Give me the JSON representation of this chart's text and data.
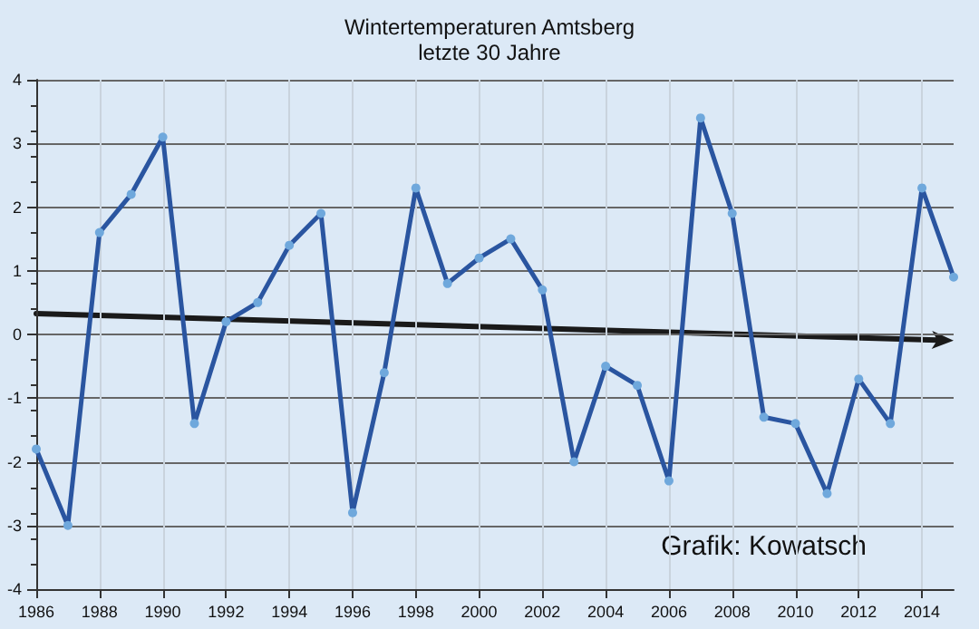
{
  "chart_data": {
    "type": "line",
    "title": "Wintertemperaturen Amtsberg",
    "subtitle": "letzte 30 Jahre",
    "x": [
      1986,
      1987,
      1988,
      1989,
      1990,
      1991,
      1992,
      1993,
      1994,
      1995,
      1996,
      1997,
      1998,
      1999,
      2000,
      2001,
      2002,
      2003,
      2004,
      2005,
      2006,
      2007,
      2008,
      2009,
      2010,
      2011,
      2012,
      2013,
      2014,
      2015
    ],
    "series": [
      {
        "color": "#2a55a0",
        "values": [
          -1.8,
          -3.0,
          1.6,
          2.2,
          3.1,
          -1.4,
          0.2,
          0.5,
          1.4,
          1.9,
          -2.8,
          -0.6,
          2.3,
          0.8,
          1.2,
          1.5,
          0.7,
          -2.0,
          -0.5,
          -0.8,
          -2.3,
          3.4,
          1.9,
          -1.3,
          -1.4,
          -2.5,
          -0.7,
          -1.4,
          2.3,
          0.9
        ]
      }
    ],
    "xlim": [
      1986,
      2015
    ],
    "xticks": [
      1986,
      1988,
      1990,
      1992,
      1994,
      1996,
      1998,
      2000,
      2002,
      2004,
      2006,
      2008,
      2010,
      2012,
      2014
    ],
    "ylim": [
      -4,
      4
    ],
    "yticks": [
      -4,
      -3,
      -2,
      -1,
      0,
      1,
      2,
      3,
      4
    ],
    "grid": true,
    "marker": "circle",
    "line_style": "solid",
    "annotations": [
      "Grafik: Kowatsch"
    ]
  }
}
